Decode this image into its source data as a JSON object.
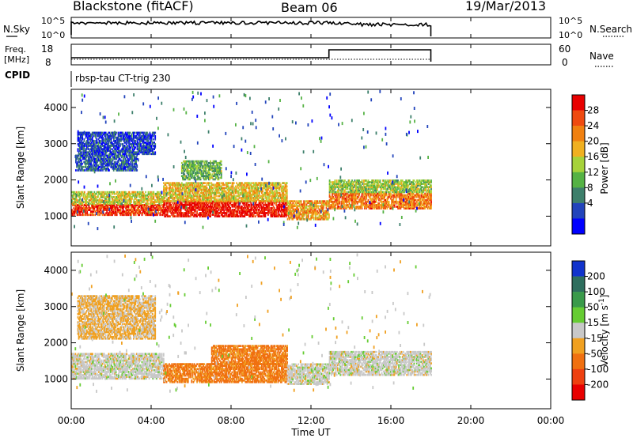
{
  "header": {
    "radar": "Blackstone (fitACF)",
    "beam": "Beam 06",
    "date": "19/Mar/2013"
  },
  "params": {
    "nsky_label": "N.Sky",
    "nsearch_label": "N.Search",
    "freq_label_line1": "Freq.",
    "freq_label_line2": "[MHz]",
    "nave_label": "Nave",
    "cpid_label": "CPID",
    "cpid_value": "rbsp-tau CT-trig 230",
    "left_top_ticks": [
      "10^5",
      "10^0"
    ],
    "right_top_ticks": [
      "10^5",
      "10^0"
    ],
    "freq_ticks": [
      "18",
      "8"
    ],
    "nave_ticks": [
      "60",
      "0"
    ]
  },
  "x_axis": {
    "label": "Time UT",
    "ticks": [
      "00:00",
      "04:00",
      "08:00",
      "12:00",
      "16:00",
      "20:00",
      "00:00"
    ]
  },
  "y_axis": {
    "label": "Slant Range [km]",
    "ticks": [
      "1000",
      "2000",
      "3000",
      "4000"
    ]
  },
  "power_scale": {
    "label": "Power [dB]",
    "ticks": [
      "4",
      "8",
      "12",
      "16",
      "20",
      "24",
      "28"
    ],
    "colors": [
      "#0000ff",
      "#2244bb",
      "#3d7f6b",
      "#55b244",
      "#a6d23a",
      "#f0b020",
      "#f08010",
      "#ef4a10",
      "#e80000"
    ]
  },
  "velocity_scale": {
    "label": "Velocity [m s^-1]",
    "ticks": [
      "200",
      "100",
      "50",
      "15",
      "-15",
      "-50",
      "-100",
      "-200"
    ],
    "colors": [
      "#1133cc",
      "#2e6e5e",
      "#3a9a4a",
      "#66cc33",
      "#c8c8c8",
      "#f0a020",
      "#f07010",
      "#ee4010",
      "#e80000"
    ]
  },
  "chart_data": [
    {
      "type": "heatmap",
      "name": "Power",
      "x_range_hours": [
        0,
        24
      ],
      "y_range_km": [
        180,
        4500
      ],
      "bands": [
        {
          "x0": 0.0,
          "x1": 4.6,
          "y0": 1020,
          "y1": 1330,
          "value_db": 26
        },
        {
          "x0": 0.0,
          "x1": 4.6,
          "y0": 1330,
          "y1": 1650,
          "value_db": 16
        },
        {
          "x0": 0.2,
          "x1": 3.3,
          "y0": 2250,
          "y1": 2700,
          "value_db": 6
        },
        {
          "x0": 0.3,
          "x1": 4.2,
          "y0": 2700,
          "y1": 3300,
          "value_db": 5
        },
        {
          "x0": 4.6,
          "x1": 10.8,
          "y0": 980,
          "y1": 1400,
          "value_db": 28
        },
        {
          "x0": 4.6,
          "x1": 10.8,
          "y0": 1400,
          "y1": 1900,
          "value_db": 18
        },
        {
          "x0": 5.5,
          "x1": 7.5,
          "y0": 2000,
          "y1": 2500,
          "value_db": 12
        },
        {
          "x0": 10.8,
          "x1": 12.9,
          "y0": 900,
          "y1": 1400,
          "value_db": 20
        },
        {
          "x0": 12.9,
          "x1": 18.0,
          "y0": 1200,
          "y1": 1650,
          "value_db": 22
        },
        {
          "x0": 12.9,
          "x1": 18.0,
          "y0": 1650,
          "y1": 2000,
          "value_db": 14
        }
      ]
    },
    {
      "type": "heatmap",
      "name": "Velocity",
      "x_range_hours": [
        0,
        24
      ],
      "y_range_km": [
        180,
        4500
      ],
      "bands": [
        {
          "x0": 0.0,
          "x1": 4.6,
          "y0": 1000,
          "y1": 1700,
          "value_ms": 0
        },
        {
          "x0": 0.3,
          "x1": 4.2,
          "y0": 2100,
          "y1": 3300,
          "value_ms": -20
        },
        {
          "x0": 4.6,
          "x1": 10.8,
          "y0": 900,
          "y1": 1400,
          "value_ms": -60
        },
        {
          "x0": 7.0,
          "x1": 10.8,
          "y0": 1400,
          "y1": 1900,
          "value_ms": -60
        },
        {
          "x0": 10.8,
          "x1": 12.9,
          "y0": 850,
          "y1": 1400,
          "value_ms": 0
        },
        {
          "x0": 12.9,
          "x1": 18.0,
          "y0": 1100,
          "y1": 1750,
          "value_ms": 0
        }
      ]
    }
  ]
}
